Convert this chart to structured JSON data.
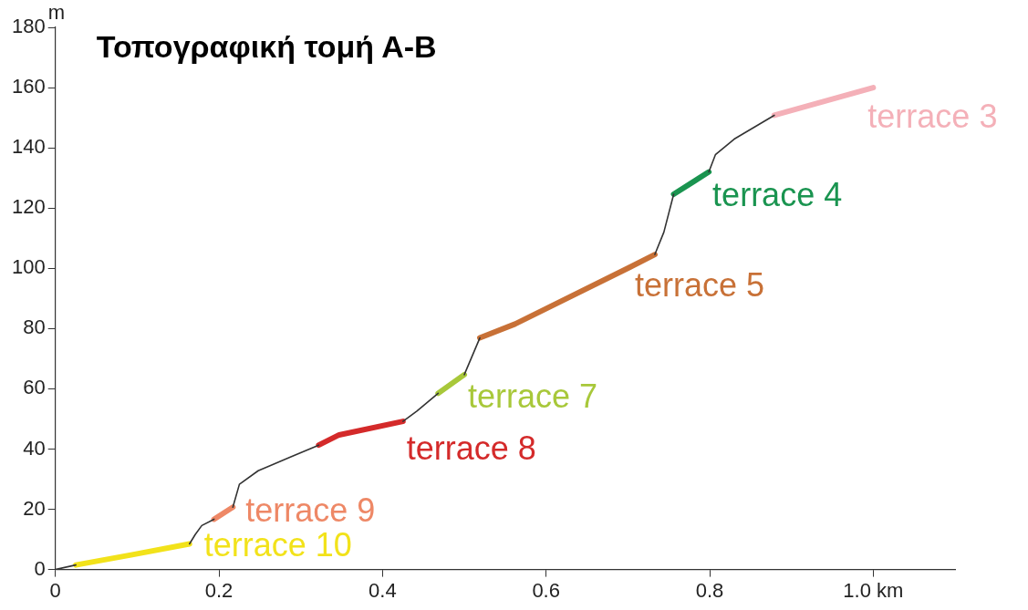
{
  "chart_data": {
    "type": "line",
    "title": "Τοπογραφική τομή Α-Β",
    "xlabel": null,
    "ylabel": "m",
    "xlim": [
      0,
      1.1
    ],
    "ylim": [
      0,
      180
    ],
    "xticks": [
      0,
      0.2,
      0.4,
      0.6,
      0.8,
      {
        "value": 1,
        "label": "1.0 km"
      }
    ],
    "yticks": [
      0,
      20,
      40,
      60,
      80,
      100,
      120,
      140,
      160,
      180
    ],
    "grid": false,
    "legend": false,
    "marker": "none",
    "line_style": "solid",
    "series": [
      {
        "color": "#333333",
        "x": [
          0,
          0.025,
          0.094,
          0.164,
          0.171,
          0.179,
          0.194,
          0.205,
          0.217,
          0.225,
          0.248,
          0.288,
          0.322,
          0.347,
          0.425,
          0.442,
          0.468,
          0.484,
          0.5,
          0.519,
          0.6,
          0.733,
          0.744,
          0.756,
          0.78,
          0.799,
          0.807,
          0.83,
          0.879
        ],
        "values": [
          0,
          1.5,
          null,
          8.5,
          11.6,
          14.6,
          16.7,
          null,
          20.7,
          28.3,
          32.8,
          37.4,
          41.3,
          null,
          49.2,
          52.6,
          58.5,
          null,
          64.7,
          76.9,
          null,
          104.6,
          112,
          124.6,
          null,
          132,
          137.7,
          142.9,
          150.8
        ]
      },
      {
        "name": "terrace 10",
        "color": "#f2e21a",
        "x": [
          0.025,
          0.094,
          0.164
        ],
        "values": [
          1.5,
          4.9,
          8.5
        ]
      },
      {
        "name": "terrace 9",
        "color": "#ee8866",
        "x": [
          0.194,
          0.217
        ],
        "values": [
          16.7,
          20.7
        ]
      },
      {
        "name": "terrace 8",
        "color": "#d42a2a",
        "x": [
          0.322,
          0.347,
          0.425
        ],
        "values": [
          41.3,
          44.7,
          49.2
        ]
      },
      {
        "name": "terrace 7",
        "color": "#a8c83a",
        "x": [
          0.468,
          0.5
        ],
        "values": [
          58.5,
          64.7
        ]
      },
      {
        "name": "terrace 5",
        "color": "#c87137",
        "x": [
          0.519,
          0.562,
          0.702,
          0.733
        ],
        "values": [
          76.9,
          81.5,
          100.3,
          104.6
        ]
      },
      {
        "name": "terrace 4",
        "color": "#1a9450",
        "x": [
          0.756,
          0.799
        ],
        "values": [
          124.6,
          132
        ]
      },
      {
        "name": "terrace 3",
        "color": "#f4b0b8",
        "x": [
          0.879,
          1.0
        ],
        "values": [
          150.8,
          160
        ]
      }
    ]
  }
}
